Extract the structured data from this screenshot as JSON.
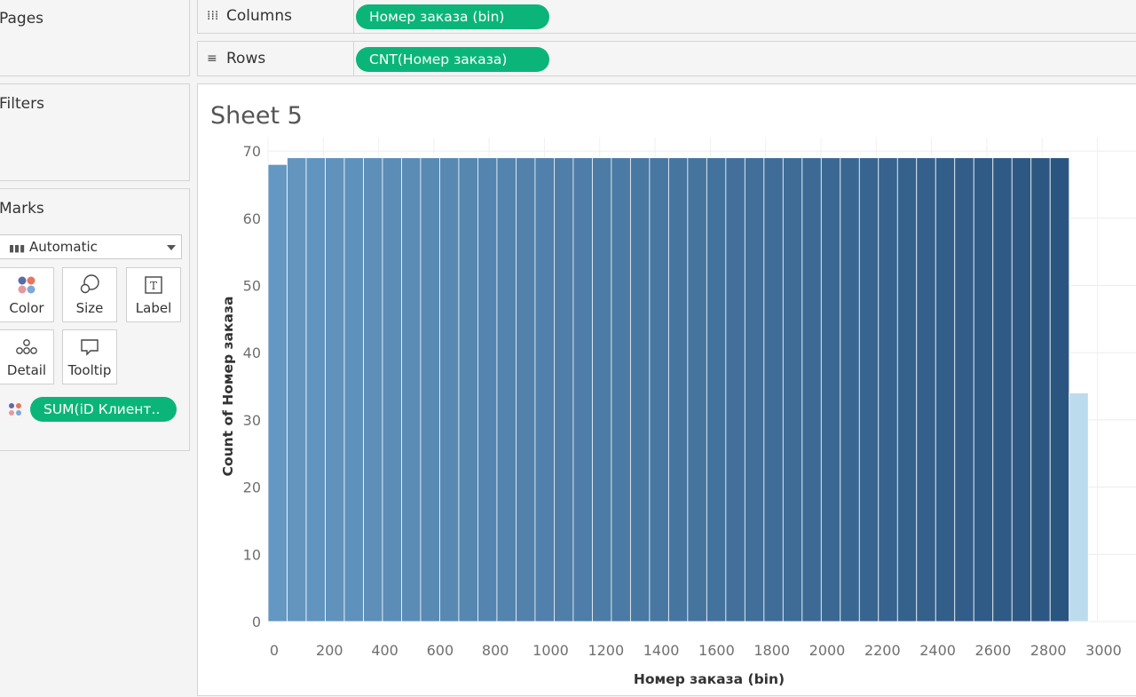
{
  "cards": {
    "pages": {
      "title": "Pages"
    },
    "filters": {
      "title": "Filters"
    },
    "marks": {
      "title": "Marks",
      "type_selected": "Automatic",
      "buttons": {
        "color": "Color",
        "size": "Size",
        "label": "Label",
        "detail": "Detail",
        "tooltip": "Tooltip"
      },
      "color_pill": "SUM(iD Клиент.."
    }
  },
  "shelves": {
    "columns": {
      "label": "Columns",
      "pill": "Номер заказа (bin)"
    },
    "rows": {
      "label": "Rows",
      "pill": "CNT(Номер заказа)"
    }
  },
  "colors": {
    "pill": "#0bb57a",
    "bar_light": "#6497c1",
    "bar_dark": "#2a5580",
    "bar_last": "#bcdcee"
  },
  "sheet": {
    "title": "Sheet 5"
  },
  "chart_data": {
    "type": "bar",
    "title": "",
    "xlabel": "Номер заказа (bin)",
    "ylabel": "Count of Номер заказа",
    "bin_width": 69,
    "x_ticks": [
      "0",
      "200",
      "400",
      "600",
      "800",
      "1000",
      "1200",
      "1400",
      "1600",
      "1800",
      "2000",
      "2200",
      "2400",
      "2600",
      "2800",
      "3000"
    ],
    "y_ticks": [
      "0",
      "10",
      "20",
      "30",
      "40",
      "50",
      "60",
      "70"
    ],
    "xlim": [
      0,
      3000
    ],
    "ylim": [
      0,
      70
    ],
    "grid": true,
    "bin_starts": [
      0,
      69,
      138,
      207,
      276,
      345,
      414,
      483,
      552,
      621,
      690,
      759,
      828,
      897,
      966,
      1035,
      1104,
      1173,
      1242,
      1311,
      1380,
      1449,
      1518,
      1587,
      1656,
      1725,
      1794,
      1863,
      1932,
      2001,
      2070,
      2139,
      2208,
      2277,
      2346,
      2415,
      2484,
      2553,
      2622,
      2691,
      2760,
      2829,
      2898,
      2967
    ],
    "values": [
      68,
      69,
      69,
      69,
      69,
      69,
      69,
      69,
      69,
      69,
      69,
      69,
      69,
      69,
      69,
      69,
      69,
      69,
      69,
      69,
      69,
      69,
      69,
      69,
      69,
      69,
      69,
      69,
      69,
      69,
      69,
      69,
      69,
      69,
      69,
      69,
      69,
      69,
      69,
      69,
      69,
      69,
      34
    ]
  }
}
